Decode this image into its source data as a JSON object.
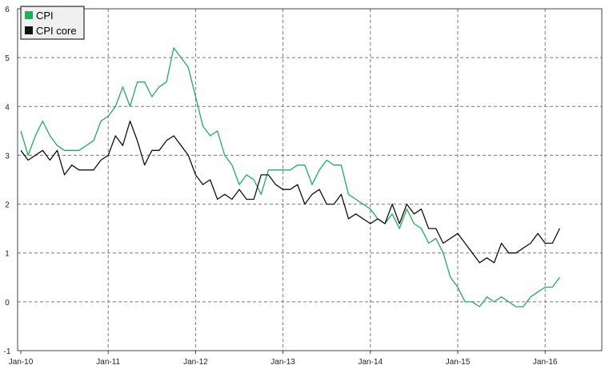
{
  "chart_data": {
    "type": "line",
    "title": "",
    "xlabel": "",
    "ylabel": "",
    "ylim": [
      -1,
      6
    ],
    "y_ticks": [
      "-1",
      "0",
      "1",
      "2",
      "3",
      "4",
      "5",
      "6"
    ],
    "x_tick_labels": [
      "Jan-10",
      "Jan-11",
      "Jan-12",
      "Jan-13",
      "Jan-14",
      "Jan-15",
      "Jan-16"
    ],
    "x_start": "Jan-10",
    "x_end": "Mar-16",
    "grid": true,
    "legend_position": "top-left",
    "series": [
      {
        "name": "CPI",
        "color": "#1fae5b",
        "values": [
          3.5,
          3.0,
          3.4,
          3.7,
          3.4,
          3.2,
          3.1,
          3.1,
          3.1,
          3.2,
          3.3,
          3.7,
          3.8,
          4.0,
          4.4,
          4.0,
          4.5,
          4.5,
          4.2,
          4.4,
          4.5,
          5.2,
          5.0,
          4.8,
          4.2,
          3.6,
          3.4,
          3.5,
          3.0,
          2.8,
          2.4,
          2.6,
          2.5,
          2.2,
          2.7,
          2.7,
          2.7,
          2.7,
          2.8,
          2.8,
          2.4,
          2.7,
          2.9,
          2.8,
          2.8,
          2.2,
          2.1,
          2.0,
          1.9,
          1.7,
          1.6,
          1.8,
          1.5,
          1.9,
          1.6,
          1.5,
          1.2,
          1.3,
          1.0,
          0.5,
          0.3,
          0.0,
          0.0,
          -0.1,
          0.1,
          0.0,
          0.1,
          0.0,
          -0.1,
          -0.1,
          0.1,
          0.2,
          0.3,
          0.3,
          0.5
        ]
      },
      {
        "name": "CPI core",
        "color": "#111111",
        "values": [
          3.1,
          2.9,
          3.0,
          3.1,
          2.9,
          3.1,
          2.6,
          2.8,
          2.7,
          2.7,
          2.7,
          2.9,
          3.0,
          3.4,
          3.2,
          3.7,
          3.3,
          2.8,
          3.1,
          3.1,
          3.3,
          3.4,
          3.2,
          3.0,
          2.6,
          2.4,
          2.5,
          2.1,
          2.2,
          2.1,
          2.3,
          2.1,
          2.1,
          2.6,
          2.6,
          2.4,
          2.3,
          2.3,
          2.4,
          2.0,
          2.2,
          2.3,
          2.0,
          2.0,
          2.2,
          1.7,
          1.8,
          1.7,
          1.6,
          1.7,
          1.6,
          2.0,
          1.6,
          2.0,
          1.8,
          1.9,
          1.5,
          1.5,
          1.2,
          1.3,
          1.4,
          1.2,
          1.0,
          0.8,
          0.9,
          0.8,
          1.2,
          1.0,
          1.0,
          1.1,
          1.2,
          1.4,
          1.2,
          1.2,
          1.5
        ]
      }
    ]
  }
}
